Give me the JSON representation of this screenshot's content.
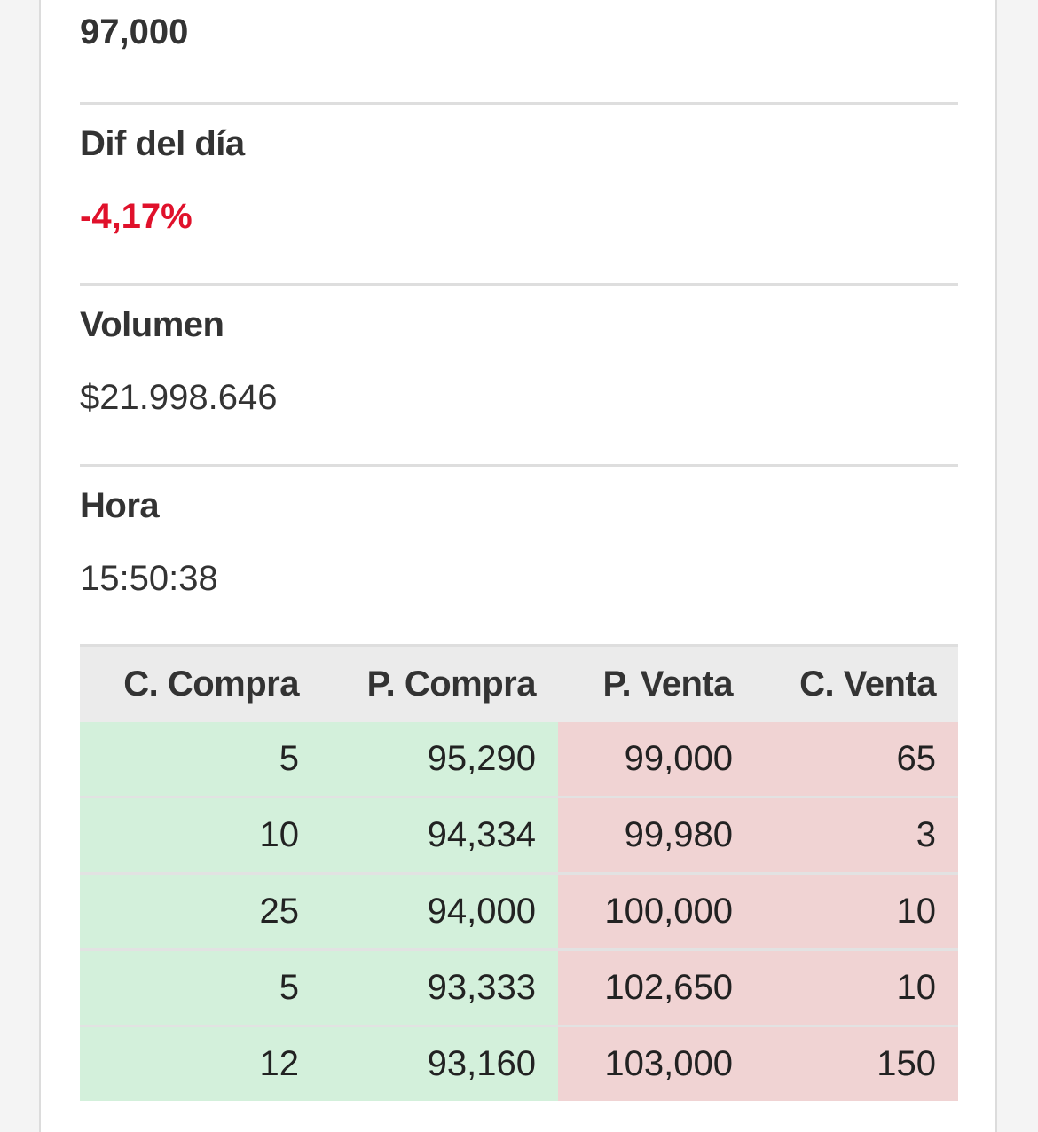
{
  "stats": {
    "first_value": "97,000",
    "dif_label": "Dif del día",
    "dif_value": "-4,17%",
    "volumen_label": "Volumen",
    "volumen_value": "$21.998.646",
    "hora_label": "Hora",
    "hora_value": "15:50:38"
  },
  "colors": {
    "negative": "#e0112b",
    "buy_bg": "#d3f0db",
    "sell_bg": "#f0d3d3"
  },
  "order_book": {
    "headers": [
      "C. Compra",
      "P. Compra",
      "P. Venta",
      "C. Venta"
    ],
    "rows": [
      [
        "5",
        "95,290",
        "99,000",
        "65"
      ],
      [
        "10",
        "94,334",
        "99,980",
        "3"
      ],
      [
        "25",
        "94,000",
        "100,000",
        "10"
      ],
      [
        "5",
        "93,333",
        "102,650",
        "10"
      ],
      [
        "12",
        "93,160",
        "103,000",
        "150"
      ]
    ]
  }
}
